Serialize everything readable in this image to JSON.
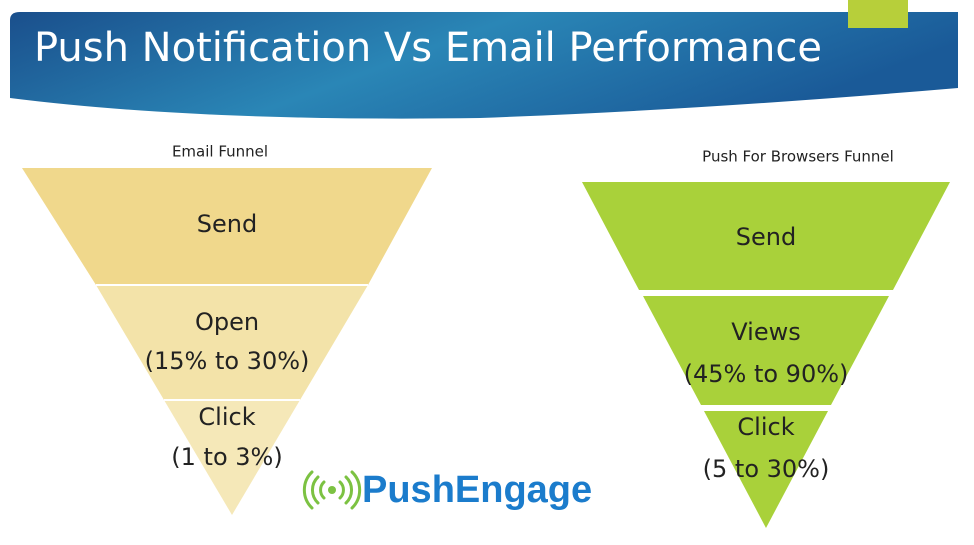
{
  "header": {
    "title": "Push Notification Vs Email Performance"
  },
  "funnels": [
    {
      "title": "Email Funnel",
      "stages": [
        {
          "lines": [
            "Send"
          ]
        },
        {
          "lines": [
            "Open",
            "(15% to 30%)"
          ]
        },
        {
          "lines": [
            "Click",
            "(1 to 3%)"
          ]
        }
      ]
    },
    {
      "title": "Push For Browsers Funnel",
      "stages": [
        {
          "lines": [
            "Send"
          ]
        },
        {
          "lines": [
            "Views",
            "(45% to 90%)"
          ]
        },
        {
          "lines": [
            "Click",
            "(5 to 30%)"
          ]
        }
      ]
    }
  ],
  "logo": {
    "text": "PushEngage"
  }
}
